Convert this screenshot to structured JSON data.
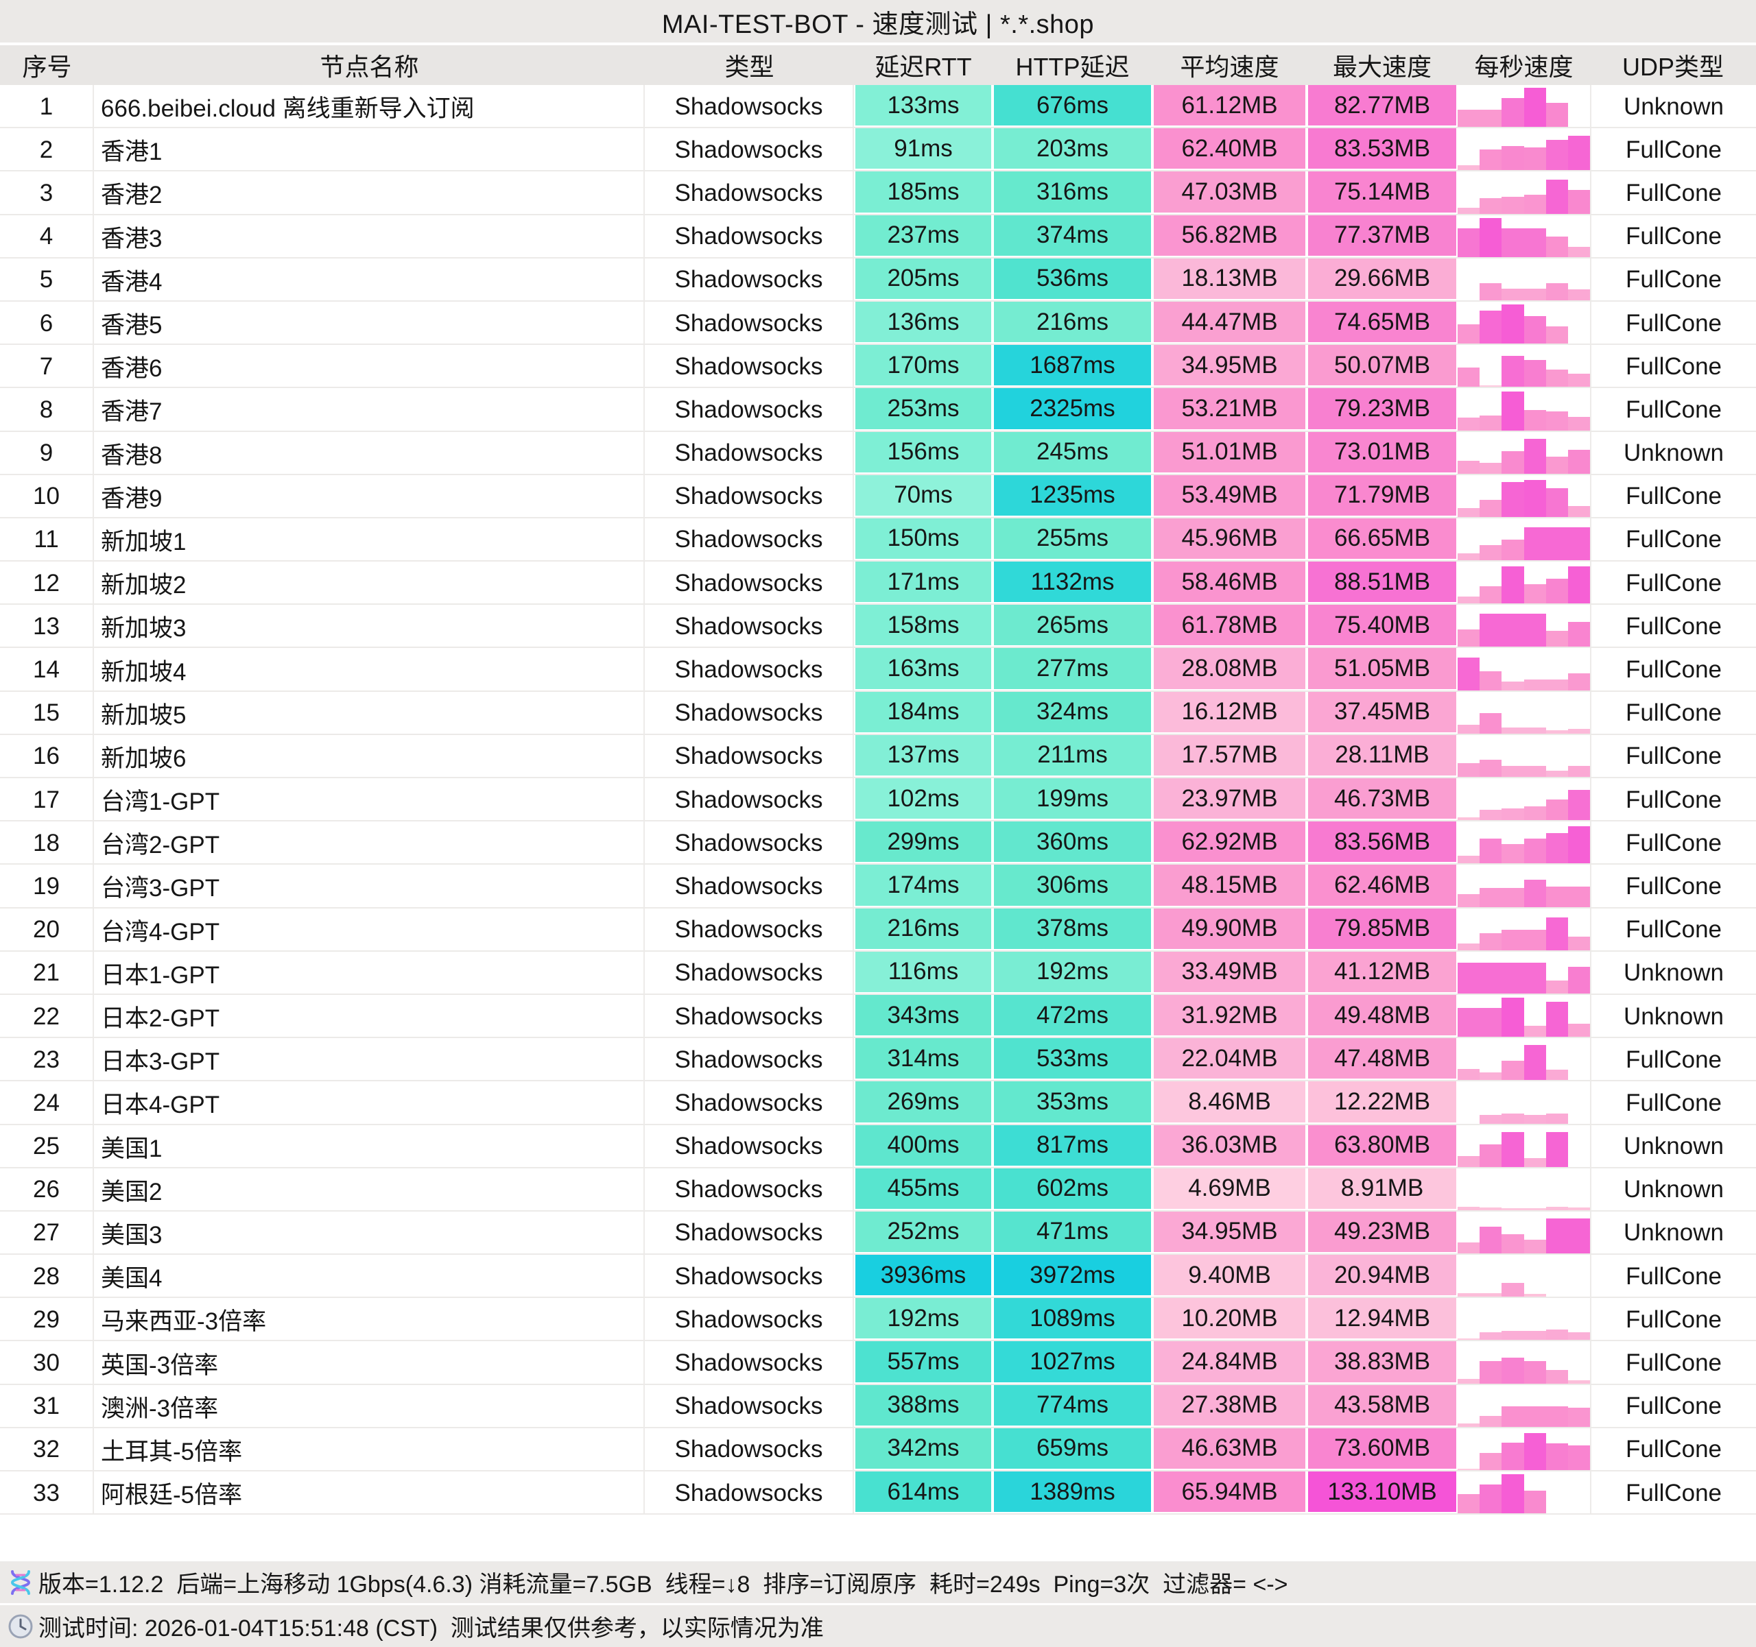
{
  "title": "MAI-TEST-BOT - 速度测试 | *.*.shop",
  "columns": [
    "序号",
    "节点名称",
    "类型",
    "延迟RTT",
    "HTTP延迟",
    "平均速度",
    "最大速度",
    "每秒速度",
    "UDP类型"
  ],
  "colors": {
    "title_bg": "#ebe9e7",
    "header_bg": "#e8e6e4",
    "footer_bg": "#eceae8",
    "row_divider": "#eceae8",
    "text": "#161616",
    "latency_scale": [
      [
        0,
        "#9cf4de"
      ],
      [
        150,
        "#7fefd5"
      ],
      [
        300,
        "#68e9cd"
      ],
      [
        600,
        "#49e1d0"
      ],
      [
        900,
        "#38dcd5"
      ],
      [
        1300,
        "#2bd6da"
      ],
      [
        2000,
        "#22d2dc"
      ],
      [
        4000,
        "#19cfe0"
      ]
    ],
    "speed_scale": [
      [
        0,
        "#ffd8e6"
      ],
      [
        10,
        "#fdc4dc"
      ],
      [
        20,
        "#fbb5d8"
      ],
      [
        35,
        "#fba8d4"
      ],
      [
        50,
        "#fa9bd0"
      ],
      [
        65,
        "#fa8ecf"
      ],
      [
        80,
        "#f87fd0"
      ],
      [
        90,
        "#f770d3"
      ],
      [
        110,
        "#f65fd5"
      ],
      [
        135,
        "#f553d7"
      ]
    ]
  },
  "rows": [
    {
      "id": "1",
      "name": "666.beibei.cloud 离线重新导入订阅",
      "type": "Shadowsocks",
      "rtt": "133ms",
      "rtt_ms": 133,
      "http": "676ms",
      "http_ms": 676,
      "avg": "61.12MB",
      "avg_mb": 61.12,
      "max": "82.77MB",
      "max_mb": 82.77,
      "udp": "Unknown",
      "bars": [
        0.45,
        0.45,
        0.75,
        1.0,
        0.62,
        0.04
      ]
    },
    {
      "id": "2",
      "name": "香港1",
      "type": "Shadowsocks",
      "rtt": "91ms",
      "rtt_ms": 91,
      "http": "203ms",
      "http_ms": 203,
      "avg": "62.40MB",
      "avg_mb": 62.4,
      "max": "83.53MB",
      "max_mb": 83.53,
      "udp": "FullCone",
      "bars": [
        0.15,
        0.55,
        0.62,
        0.6,
        0.78,
        0.88
      ]
    },
    {
      "id": "3",
      "name": "香港2",
      "type": "Shadowsocks",
      "rtt": "185ms",
      "rtt_ms": 185,
      "http": "316ms",
      "http_ms": 316,
      "avg": "47.03MB",
      "avg_mb": 47.03,
      "max": "75.14MB",
      "max_mb": 75.14,
      "udp": "FullCone",
      "bars": [
        0.18,
        0.42,
        0.45,
        0.5,
        0.88,
        0.62
      ]
    },
    {
      "id": "4",
      "name": "香港3",
      "type": "Shadowsocks",
      "rtt": "237ms",
      "rtt_ms": 237,
      "http": "374ms",
      "http_ms": 374,
      "avg": "56.82MB",
      "avg_mb": 56.82,
      "max": "77.37MB",
      "max_mb": 77.37,
      "udp": "FullCone",
      "bars": [
        0.75,
        1.0,
        0.75,
        0.75,
        0.55,
        0.28
      ]
    },
    {
      "id": "5",
      "name": "香港4",
      "type": "Shadowsocks",
      "rtt": "205ms",
      "rtt_ms": 205,
      "http": "536ms",
      "http_ms": 536,
      "avg": "18.13MB",
      "avg_mb": 18.13,
      "max": "29.66MB",
      "max_mb": 29.66,
      "udp": "FullCone",
      "bars": [
        0.04,
        0.45,
        0.33,
        0.33,
        0.45,
        0.3
      ]
    },
    {
      "id": "6",
      "name": "香港5",
      "type": "Shadowsocks",
      "rtt": "136ms",
      "rtt_ms": 136,
      "http": "216ms",
      "http_ms": 216,
      "avg": "44.47MB",
      "avg_mb": 44.47,
      "max": "74.65MB",
      "max_mb": 74.65,
      "udp": "FullCone",
      "bars": [
        0.5,
        0.85,
        1.0,
        0.72,
        0.45,
        0.04
      ]
    },
    {
      "id": "7",
      "name": "香港6",
      "type": "Shadowsocks",
      "rtt": "170ms",
      "rtt_ms": 170,
      "http": "1687ms",
      "http_ms": 1687,
      "avg": "34.95MB",
      "avg_mb": 34.95,
      "max": "50.07MB",
      "max_mb": 50.07,
      "udp": "FullCone",
      "bars": [
        0.5,
        0.06,
        0.8,
        0.7,
        0.45,
        0.35
      ]
    },
    {
      "id": "8",
      "name": "香港7",
      "type": "Shadowsocks",
      "rtt": "253ms",
      "rtt_ms": 253,
      "http": "2325ms",
      "http_ms": 2325,
      "avg": "53.21MB",
      "avg_mb": 53.21,
      "max": "79.23MB",
      "max_mb": 79.23,
      "udp": "FullCone",
      "bars": [
        0.35,
        0.4,
        1.0,
        0.55,
        0.5,
        0.38
      ]
    },
    {
      "id": "9",
      "name": "香港8",
      "type": "Shadowsocks",
      "rtt": "156ms",
      "rtt_ms": 156,
      "http": "245ms",
      "http_ms": 245,
      "avg": "51.01MB",
      "avg_mb": 51.01,
      "max": "73.01MB",
      "max_mb": 73.01,
      "udp": "Unknown",
      "bars": [
        0.35,
        0.3,
        0.6,
        0.9,
        0.45,
        0.62
      ]
    },
    {
      "id": "10",
      "name": "香港9",
      "type": "Shadowsocks",
      "rtt": "70ms",
      "rtt_ms": 70,
      "http": "1235ms",
      "http_ms": 1235,
      "avg": "53.49MB",
      "avg_mb": 53.49,
      "max": "71.79MB",
      "max_mb": 71.79,
      "udp": "FullCone",
      "bars": [
        0.25,
        0.45,
        0.9,
        0.95,
        0.75,
        0.3
      ]
    },
    {
      "id": "11",
      "name": "新加坡1",
      "type": "Shadowsocks",
      "rtt": "150ms",
      "rtt_ms": 150,
      "http": "255ms",
      "http_ms": 255,
      "avg": "45.96MB",
      "avg_mb": 45.96,
      "max": "66.65MB",
      "max_mb": 66.65,
      "udp": "FullCone",
      "bars": [
        0.2,
        0.4,
        0.55,
        0.85,
        0.85,
        0.85
      ]
    },
    {
      "id": "12",
      "name": "新加坡2",
      "type": "Shadowsocks",
      "rtt": "171ms",
      "rtt_ms": 171,
      "http": "1132ms",
      "http_ms": 1132,
      "avg": "58.46MB",
      "avg_mb": 58.46,
      "max": "88.51MB",
      "max_mb": 88.51,
      "udp": "FullCone",
      "bars": [
        0.2,
        0.45,
        0.95,
        0.5,
        0.65,
        0.95
      ]
    },
    {
      "id": "13",
      "name": "新加坡3",
      "type": "Shadowsocks",
      "rtt": "158ms",
      "rtt_ms": 158,
      "http": "265ms",
      "http_ms": 265,
      "avg": "61.78MB",
      "avg_mb": 61.78,
      "max": "75.40MB",
      "max_mb": 75.4,
      "udp": "FullCone",
      "bars": [
        0.45,
        0.85,
        0.85,
        0.85,
        0.42,
        0.65
      ]
    },
    {
      "id": "14",
      "name": "新加坡4",
      "type": "Shadowsocks",
      "rtt": "163ms",
      "rtt_ms": 163,
      "http": "277ms",
      "http_ms": 277,
      "avg": "28.08MB",
      "avg_mb": 28.08,
      "max": "51.05MB",
      "max_mb": 51.05,
      "udp": "FullCone",
      "bars": [
        0.85,
        0.5,
        0.25,
        0.3,
        0.3,
        0.45
      ]
    },
    {
      "id": "15",
      "name": "新加坡5",
      "type": "Shadowsocks",
      "rtt": "184ms",
      "rtt_ms": 184,
      "http": "324ms",
      "http_ms": 324,
      "avg": "16.12MB",
      "avg_mb": 16.12,
      "max": "37.45MB",
      "max_mb": 37.45,
      "udp": "FullCone",
      "bars": [
        0.25,
        0.55,
        0.18,
        0.18,
        0.12,
        0.15
      ]
    },
    {
      "id": "16",
      "name": "新加坡6",
      "type": "Shadowsocks",
      "rtt": "137ms",
      "rtt_ms": 137,
      "http": "211ms",
      "http_ms": 211,
      "avg": "17.57MB",
      "avg_mb": 17.57,
      "max": "28.11MB",
      "max_mb": 28.11,
      "udp": "FullCone",
      "bars": [
        0.38,
        0.45,
        0.3,
        0.3,
        0.18,
        0.3
      ]
    },
    {
      "id": "17",
      "name": "台湾1-GPT",
      "type": "Shadowsocks",
      "rtt": "102ms",
      "rtt_ms": 102,
      "http": "199ms",
      "http_ms": 199,
      "avg": "23.97MB",
      "avg_mb": 23.97,
      "max": "46.73MB",
      "max_mb": 46.73,
      "udp": "FullCone",
      "bars": [
        0.1,
        0.28,
        0.32,
        0.38,
        0.55,
        0.78
      ]
    },
    {
      "id": "18",
      "name": "台湾2-GPT",
      "type": "Shadowsocks",
      "rtt": "299ms",
      "rtt_ms": 299,
      "http": "360ms",
      "http_ms": 360,
      "avg": "62.92MB",
      "avg_mb": 62.92,
      "max": "83.56MB",
      "max_mb": 83.56,
      "udp": "FullCone",
      "bars": [
        0.22,
        0.65,
        0.5,
        0.65,
        0.78,
        0.95
      ]
    },
    {
      "id": "19",
      "name": "台湾3-GPT",
      "type": "Shadowsocks",
      "rtt": "174ms",
      "rtt_ms": 174,
      "http": "306ms",
      "http_ms": 306,
      "avg": "48.15MB",
      "avg_mb": 48.15,
      "max": "62.46MB",
      "max_mb": 62.46,
      "udp": "FullCone",
      "bars": [
        0.35,
        0.5,
        0.5,
        0.72,
        0.55,
        0.55
      ]
    },
    {
      "id": "20",
      "name": "台湾4-GPT",
      "type": "Shadowsocks",
      "rtt": "216ms",
      "rtt_ms": 216,
      "http": "378ms",
      "http_ms": 378,
      "avg": "49.90MB",
      "avg_mb": 49.9,
      "max": "79.85MB",
      "max_mb": 79.85,
      "udp": "FullCone",
      "bars": [
        0.2,
        0.45,
        0.55,
        0.55,
        0.85,
        0.38
      ]
    },
    {
      "id": "21",
      "name": "日本1-GPT",
      "type": "Shadowsocks",
      "rtt": "116ms",
      "rtt_ms": 116,
      "http": "192ms",
      "http_ms": 192,
      "avg": "33.49MB",
      "avg_mb": 33.49,
      "max": "41.12MB",
      "max_mb": 41.12,
      "udp": "Unknown",
      "bars": [
        0.8,
        0.8,
        0.8,
        0.8,
        0.35,
        0.7
      ]
    },
    {
      "id": "22",
      "name": "日本2-GPT",
      "type": "Shadowsocks",
      "rtt": "343ms",
      "rtt_ms": 343,
      "http": "472ms",
      "http_ms": 472,
      "avg": "31.92MB",
      "avg_mb": 31.92,
      "max": "49.48MB",
      "max_mb": 49.48,
      "udp": "Unknown",
      "bars": [
        0.75,
        0.75,
        1.0,
        0.3,
        0.9,
        0.35
      ]
    },
    {
      "id": "23",
      "name": "日本3-GPT",
      "type": "Shadowsocks",
      "rtt": "314ms",
      "rtt_ms": 314,
      "http": "533ms",
      "http_ms": 533,
      "avg": "22.04MB",
      "avg_mb": 22.04,
      "max": "47.48MB",
      "max_mb": 47.48,
      "udp": "FullCone",
      "bars": [
        0.3,
        0.22,
        0.5,
        0.9,
        0.28,
        0.03
      ]
    },
    {
      "id": "24",
      "name": "日本4-GPT",
      "type": "Shadowsocks",
      "rtt": "269ms",
      "rtt_ms": 269,
      "http": "353ms",
      "http_ms": 353,
      "avg": "8.46MB",
      "avg_mb": 8.46,
      "max": "12.22MB",
      "max_mb": 12.22,
      "udp": "FullCone",
      "bars": [
        0.03,
        0.25,
        0.28,
        0.25,
        0.28,
        0.03
      ]
    },
    {
      "id": "25",
      "name": "美国1",
      "type": "Shadowsocks",
      "rtt": "400ms",
      "rtt_ms": 400,
      "http": "817ms",
      "http_ms": 817,
      "avg": "36.03MB",
      "avg_mb": 36.03,
      "max": "63.80MB",
      "max_mb": 63.8,
      "udp": "Unknown",
      "bars": [
        0.3,
        0.6,
        0.9,
        0.25,
        0.9,
        0.03
      ]
    },
    {
      "id": "26",
      "name": "美国2",
      "type": "Shadowsocks",
      "rtt": "455ms",
      "rtt_ms": 455,
      "http": "602ms",
      "http_ms": 602,
      "avg": "4.69MB",
      "avg_mb": 4.69,
      "max": "8.91MB",
      "max_mb": 8.91,
      "udp": "Unknown",
      "bars": [
        0.12,
        0.1,
        0.08,
        0.08,
        0.12,
        0.1
      ]
    },
    {
      "id": "27",
      "name": "美国3",
      "type": "Shadowsocks",
      "rtt": "252ms",
      "rtt_ms": 252,
      "http": "471ms",
      "http_ms": 471,
      "avg": "34.95MB",
      "avg_mb": 34.95,
      "max": "49.23MB",
      "max_mb": 49.23,
      "udp": "Unknown",
      "bars": [
        0.3,
        0.7,
        0.5,
        0.38,
        0.9,
        0.9
      ]
    },
    {
      "id": "28",
      "name": "美国4",
      "type": "Shadowsocks",
      "rtt": "3936ms",
      "rtt_ms": 3936,
      "http": "3972ms",
      "http_ms": 3972,
      "avg": "9.40MB",
      "avg_mb": 9.4,
      "max": "20.94MB",
      "max_mb": 20.94,
      "udp": "FullCone",
      "bars": [
        0.12,
        0.12,
        0.38,
        0.1,
        0.03,
        0.03
      ]
    },
    {
      "id": "29",
      "name": "马来西亚-3倍率",
      "type": "Shadowsocks",
      "rtt": "192ms",
      "rtt_ms": 192,
      "http": "1089ms",
      "http_ms": 1089,
      "avg": "10.20MB",
      "avg_mb": 10.2,
      "max": "12.94MB",
      "max_mb": 12.94,
      "udp": "FullCone",
      "bars": [
        0.06,
        0.22,
        0.25,
        0.25,
        0.28,
        0.22
      ]
    },
    {
      "id": "30",
      "name": "英国-3倍率",
      "type": "Shadowsocks",
      "rtt": "557ms",
      "rtt_ms": 557,
      "http": "1027ms",
      "http_ms": 1027,
      "avg": "24.84MB",
      "avg_mb": 24.84,
      "max": "38.83MB",
      "max_mb": 38.83,
      "udp": "FullCone",
      "bars": [
        0.15,
        0.6,
        0.68,
        0.6,
        0.38,
        0.12
      ]
    },
    {
      "id": "31",
      "name": "澳洲-3倍率",
      "type": "Shadowsocks",
      "rtt": "388ms",
      "rtt_ms": 388,
      "http": "774ms",
      "http_ms": 774,
      "avg": "27.38MB",
      "avg_mb": 27.38,
      "max": "43.58MB",
      "max_mb": 43.58,
      "udp": "FullCone",
      "bars": [
        0.12,
        0.3,
        0.55,
        0.55,
        0.55,
        0.5
      ]
    },
    {
      "id": "32",
      "name": "土耳其-5倍率",
      "type": "Shadowsocks",
      "rtt": "342ms",
      "rtt_ms": 342,
      "http": "659ms",
      "http_ms": 659,
      "avg": "46.63MB",
      "avg_mb": 46.63,
      "max": "73.60MB",
      "max_mb": 73.6,
      "udp": "FullCone",
      "bars": [
        0.06,
        0.45,
        0.72,
        0.95,
        0.7,
        0.65
      ]
    },
    {
      "id": "33",
      "name": "阿根廷-5倍率",
      "type": "Shadowsocks",
      "rtt": "614ms",
      "rtt_ms": 614,
      "http": "1389ms",
      "http_ms": 1389,
      "avg": "65.94MB",
      "avg_mb": 65.94,
      "max": "133.10MB",
      "max_mb": 133.1,
      "udp": "FullCone",
      "bars": [
        0.5,
        0.75,
        1.0,
        0.6,
        0.03,
        0.03
      ]
    }
  ],
  "footer": {
    "line1": "版本=1.12.2  后端=上海移动 1Gbps(4.6.3) 消耗流量=7.5GB  线程=↓8  排序=订阅原序  耗时=249s  Ping=3次  过滤器= <->",
    "line2": "测试时间: 2026-01-04T15:51:48 (CST)  测试结果仅供参考，以实际情况为准"
  }
}
